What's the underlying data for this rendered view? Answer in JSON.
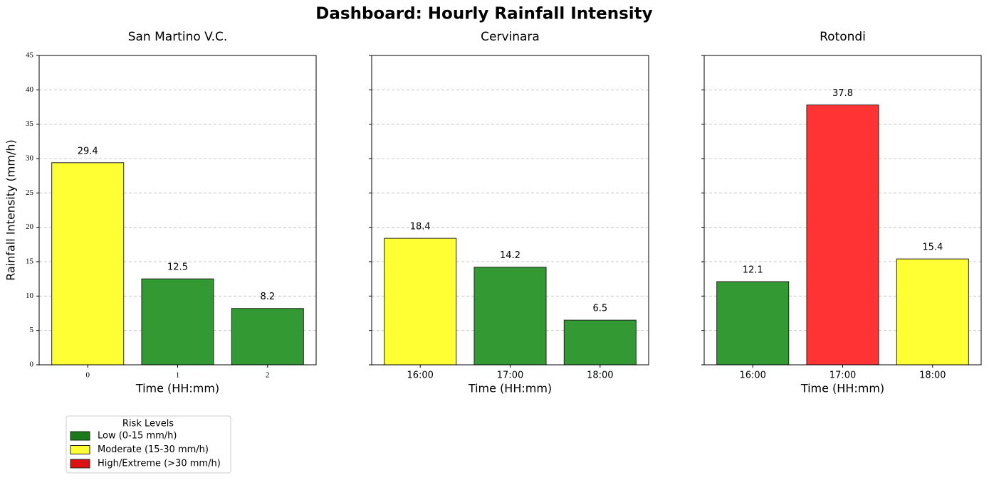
{
  "title": "Dashboard: Hourly Rainfall Intensity",
  "chart_data": [
    {
      "type": "bar",
      "title": "San Martino V.C.",
      "xlabel": "Time (HH:mm)",
      "ylabel": "Rainfall Intensity (mm/h)",
      "categories": [
        "0",
        "1",
        "2"
      ],
      "values": [
        29.4,
        12.5,
        8.2
      ],
      "colors": [
        "#ffff33",
        "#339933",
        "#339933"
      ],
      "ylim": [
        0,
        45
      ],
      "yticks": [
        0,
        5,
        10,
        15,
        20,
        25,
        30,
        35,
        40,
        45
      ],
      "grid": true
    },
    {
      "type": "bar",
      "title": "Cervinara",
      "xlabel": "Time (HH:mm)",
      "categories": [
        "16:00",
        "17:00",
        "18:00"
      ],
      "values": [
        18.4,
        14.2,
        6.5
      ],
      "colors": [
        "#ffff33",
        "#339933",
        "#339933"
      ],
      "ylim": [
        0,
        45
      ],
      "yticks": [
        0,
        5,
        10,
        15,
        20,
        25,
        30,
        35,
        40,
        45
      ],
      "grid": true
    },
    {
      "type": "bar",
      "title": "Rotondi",
      "xlabel": "Time (HH:mm)",
      "categories": [
        "16:00",
        "17:00",
        "18:00"
      ],
      "values": [
        12.1,
        37.8,
        15.4
      ],
      "colors": [
        "#339933",
        "#ff3333",
        "#ffff33"
      ],
      "ylim": [
        0,
        45
      ],
      "yticks": [
        0,
        5,
        10,
        15,
        20,
        25,
        30,
        35,
        40,
        45
      ],
      "grid": true
    }
  ],
  "legend": {
    "title": "Risk Levels",
    "items": [
      {
        "name": "Low (0-15 mm/h)",
        "color": "#1a7a1a"
      },
      {
        "name": "Moderate (15-30 mm/h)",
        "color": "#ffff33"
      },
      {
        "name": "High/Extreme (>30 mm/h)",
        "color": "#dd1111"
      }
    ]
  }
}
